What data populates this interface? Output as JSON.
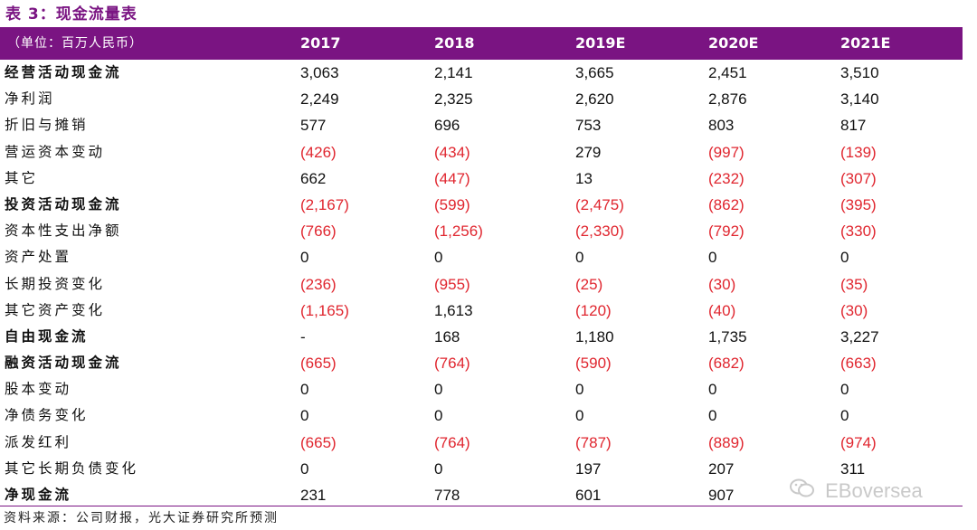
{
  "title": "表 3：现金流量表",
  "header": {
    "unit": "（单位：百万人民币）",
    "years": [
      "2017",
      "2018",
      "2019E",
      "2020E",
      "2021E"
    ]
  },
  "rows": [
    {
      "label": "经营活动现金流",
      "bold": true,
      "values": [
        "3,063",
        "2,141",
        "3,665",
        "2,451",
        "3,510"
      ]
    },
    {
      "label": "净利润",
      "bold": false,
      "values": [
        "2,249",
        "2,325",
        "2,620",
        "2,876",
        "3,140"
      ]
    },
    {
      "label": "折旧与摊销",
      "bold": false,
      "values": [
        "577",
        "696",
        "753",
        "803",
        "817"
      ]
    },
    {
      "label": "营运资本变动",
      "bold": false,
      "values": [
        "(426)",
        "(434)",
        "279",
        "(997)",
        "(139)"
      ]
    },
    {
      "label": "其它",
      "bold": false,
      "values": [
        "662",
        "(447)",
        "13",
        "(232)",
        "(307)"
      ]
    },
    {
      "label": "投资活动现金流",
      "bold": true,
      "values": [
        "(2,167)",
        "(599)",
        "(2,475)",
        "(862)",
        "(395)"
      ]
    },
    {
      "label": "资本性支出净额",
      "bold": false,
      "values": [
        "(766)",
        "(1,256)",
        "(2,330)",
        "(792)",
        "(330)"
      ]
    },
    {
      "label": "资产处置",
      "bold": false,
      "values": [
        "0",
        "0",
        "0",
        "0",
        "0"
      ]
    },
    {
      "label": "长期投资变化",
      "bold": false,
      "values": [
        "(236)",
        "(955)",
        "(25)",
        "(30)",
        "(35)"
      ]
    },
    {
      "label": "其它资产变化",
      "bold": false,
      "values": [
        "(1,165)",
        "1,613",
        "(120)",
        "(40)",
        "(30)"
      ]
    },
    {
      "label": "自由现金流",
      "bold": true,
      "values": [
        "-",
        "168",
        "1,180",
        "1,735",
        "3,227"
      ]
    },
    {
      "label": "融资活动现金流",
      "bold": true,
      "values": [
        "(665)",
        "(764)",
        "(590)",
        "(682)",
        "(663)"
      ]
    },
    {
      "label": "股本变动",
      "bold": false,
      "values": [
        "0",
        "0",
        "0",
        "0",
        "0"
      ]
    },
    {
      "label": "净债务变化",
      "bold": false,
      "values": [
        "0",
        "0",
        "0",
        "0",
        "0"
      ]
    },
    {
      "label": "派发红利",
      "bold": false,
      "values": [
        "(665)",
        "(764)",
        "(787)",
        "(889)",
        "(974)"
      ]
    },
    {
      "label": "其它长期负债变化",
      "bold": false,
      "values": [
        "0",
        "0",
        "197",
        "207",
        "311"
      ]
    },
    {
      "label": "净现金流",
      "bold": true,
      "values": [
        "231",
        "778",
        "601",
        "907",
        ""
      ]
    }
  ],
  "source": "资料来源：公司财报，光大证券研究所预测",
  "watermark": "EBoversea",
  "colors": {
    "accent": "#7a1482",
    "negative": "#e0262f"
  },
  "icons": {
    "watermark": "wechat-logo-icon"
  }
}
